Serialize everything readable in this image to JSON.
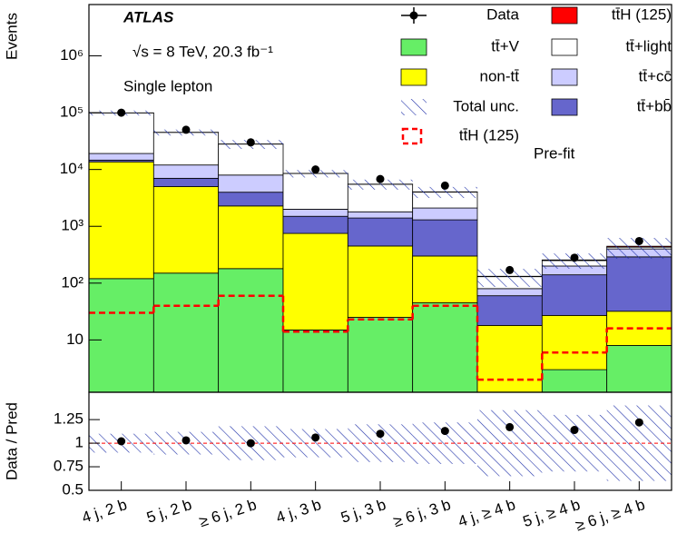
{
  "chart_data": {
    "type": "bar",
    "stacked": true,
    "log_y": true,
    "ylabel": "Events",
    "annotations": {
      "experiment": "ATLAS",
      "energy": "√s = 8 TeV,  20.3 fb⁻¹",
      "channel": "Single lepton",
      "stage": "Pre-fit"
    },
    "categories": [
      "4 j, 2 b",
      "5 j, 2 b",
      "≥ 6 j, 2 b",
      "4 j, 3 b",
      "5 j, 3 b",
      "≥ 6 j, 3 b",
      "4 j, ≥ 4 b",
      "5 j, ≥ 4 b",
      "≥ 6 j, ≥ 4 b"
    ],
    "series": [
      {
        "name": "tt̄+V",
        "color": "#66ee66",
        "values": [
          120,
          150,
          180,
          15,
          25,
          45,
          1,
          3,
          8
        ]
      },
      {
        "name": "non-tt̄",
        "color": "#ffff00",
        "values": [
          13500,
          4850,
          2100,
          735,
          425,
          255,
          17,
          24,
          24
        ]
      },
      {
        "name": "tt̄+bb̄",
        "color": "#6666cc",
        "values": [
          1000,
          2000,
          1700,
          750,
          950,
          1000,
          42,
          113,
          258
        ]
      },
      {
        "name": "tt̄+cc̄",
        "color": "#ccccff",
        "values": [
          4500,
          5000,
          4000,
          500,
          400,
          800,
          20,
          60,
          110
        ]
      },
      {
        "name": "tt̄+light",
        "color": "#ffffff",
        "values": [
          80000,
          33000,
          20000,
          6500,
          3700,
          1900,
          50,
          50,
          30
        ]
      },
      {
        "name": "tt̄H (125)",
        "color": "#ff0000",
        "values": [
          30,
          40,
          60,
          14,
          23,
          40,
          2,
          6,
          16
        ]
      }
    ],
    "data": {
      "name": "Data",
      "color": "#000000",
      "values": [
        100000,
        50000,
        30000,
        10000,
        6800,
        5200,
        170,
        280,
        550
      ]
    },
    "uncertainty": {
      "name": "Total unc.",
      "color": "#2233aa",
      "values": [
        0.1,
        0.12,
        0.18,
        0.15,
        0.2,
        0.22,
        0.35,
        0.3,
        0.4
      ]
    },
    "signal_overlay": {
      "name": "tt̄H (125)",
      "color": "#ff0000",
      "values": [
        30,
        40,
        60,
        14,
        23,
        40,
        2,
        6,
        16
      ]
    },
    "ylim": [
      1.2,
      8000000
    ],
    "yticks": [
      10,
      {
        "value": 100,
        "label": "10²"
      },
      {
        "value": 1000,
        "label": "10³"
      },
      {
        "value": 10000,
        "label": "10⁴"
      },
      {
        "value": 100000,
        "label": "10⁵"
      },
      {
        "value": 1000000,
        "label": "10⁶"
      }
    ],
    "ratio": {
      "type": "scatter",
      "ylabel": "Data / Pred",
      "values": [
        1.02,
        1.03,
        1.0,
        1.06,
        1.1,
        1.13,
        1.17,
        1.14,
        1.22
      ],
      "reference": 1,
      "ylim": [
        0.5,
        1.54
      ],
      "yticks": [
        0.5,
        0.75,
        1,
        1.25
      ]
    }
  }
}
